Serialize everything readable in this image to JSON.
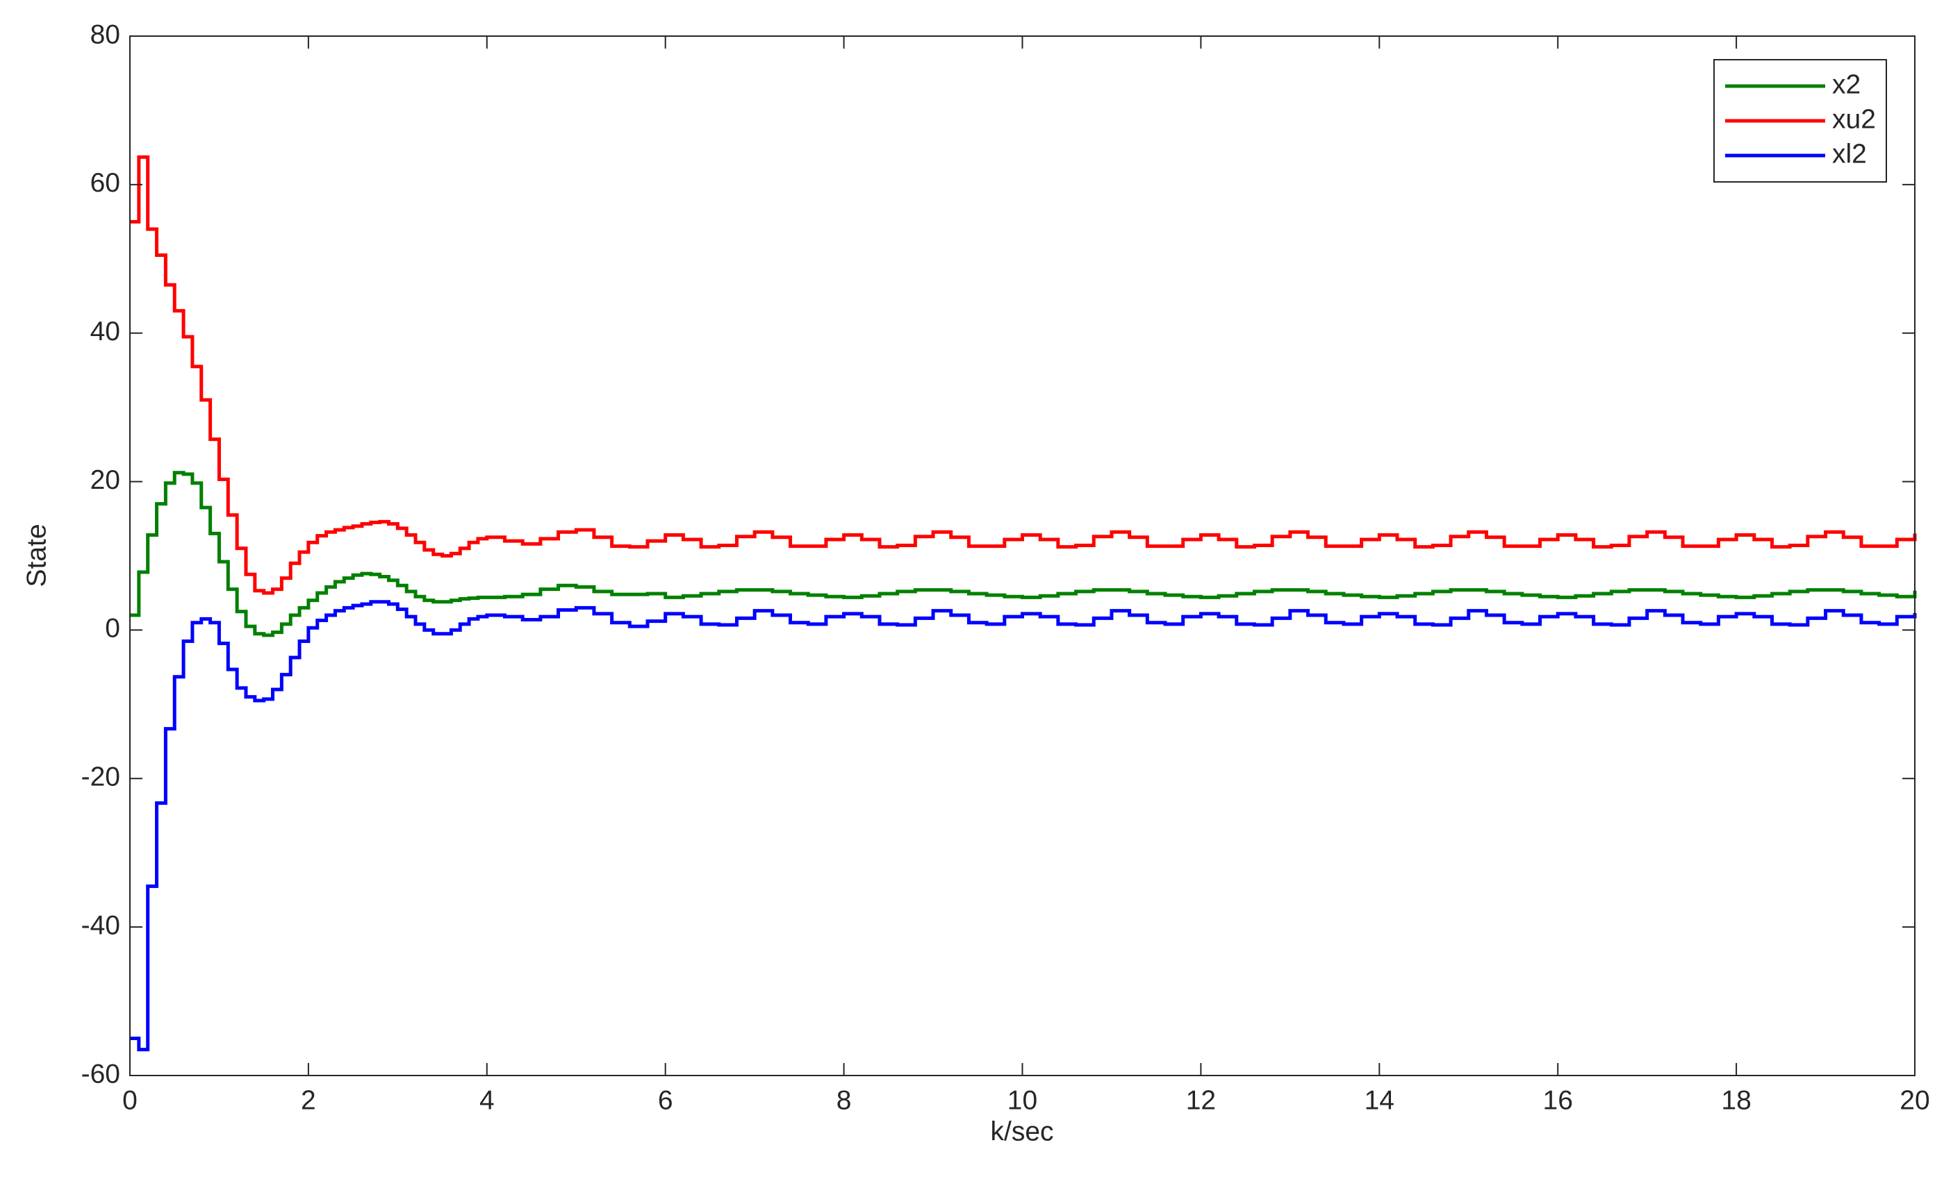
{
  "chart_data": {
    "type": "stairs",
    "xlabel": "k/sec",
    "ylabel": "State",
    "xlim": [
      0,
      20
    ],
    "ylim": [
      -60,
      80
    ],
    "xticks": [
      0,
      2,
      4,
      6,
      8,
      10,
      12,
      14,
      16,
      18,
      20
    ],
    "yticks": [
      -60,
      -40,
      -20,
      0,
      20,
      40,
      60,
      80
    ],
    "grid": false,
    "legend": "northeast",
    "x": [
      0,
      0.1,
      0.2,
      0.3,
      0.4,
      0.5,
      0.6,
      0.7,
      0.8,
      0.9,
      1,
      1.1,
      1.2,
      1.3,
      1.4,
      1.5,
      1.6,
      1.7,
      1.8,
      1.9,
      2,
      2.1,
      2.2,
      2.3,
      2.4,
      2.5,
      2.6,
      2.7,
      2.8,
      2.9,
      3,
      3.1,
      3.2,
      3.3,
      3.4,
      3.5,
      3.6,
      3.7,
      3.8,
      3.9,
      4,
      4.2,
      4.4,
      4.6,
      4.8,
      5,
      5.2,
      5.4,
      5.6,
      5.8,
      6,
      6.2,
      6.4,
      6.6,
      6.8,
      7,
      7.2,
      7.4,
      7.6,
      7.8,
      8,
      8.2,
      8.4,
      8.6,
      8.8,
      9,
      9.2,
      9.4,
      9.6,
      9.8,
      10,
      10.2,
      10.4,
      10.6,
      10.8,
      11,
      11.2,
      11.4,
      11.6,
      11.8,
      12,
      12.2,
      12.4,
      12.6,
      12.8,
      13,
      13.2,
      13.4,
      13.6,
      13.8,
      14,
      14.2,
      14.4,
      14.6,
      14.8,
      15,
      15.2,
      15.4,
      15.6,
      15.8,
      16,
      16.2,
      16.4,
      16.6,
      16.8,
      17,
      17.2,
      17.4,
      17.6,
      17.8,
      18,
      18.2,
      18.4,
      18.6,
      18.8,
      19,
      19.2,
      19.4,
      19.6,
      19.8,
      20
    ],
    "series": [
      {
        "name": "x2",
        "color": "#008000",
        "values": [
          2,
          7.8,
          12.8,
          17,
          19.8,
          21.2,
          21,
          19.8,
          16.5,
          13,
          9.2,
          5.5,
          2.5,
          0.5,
          -0.5,
          -0.7,
          -0.3,
          0.8,
          2,
          3,
          4,
          5,
          5.8,
          6.5,
          7,
          7.4,
          7.6,
          7.5,
          7.2,
          6.7,
          6,
          5.2,
          4.5,
          4,
          3.8,
          3.8,
          4,
          4.2,
          4.3,
          4.4,
          4.4,
          4.5,
          4.8,
          5.5,
          6,
          5.8,
          5.2,
          4.8,
          4.8,
          4.9,
          4.4,
          4.6,
          4.9,
          5.2,
          5.4,
          5.4,
          5.2,
          4.9,
          4.7,
          4.5,
          4.4,
          4.6,
          4.9,
          5.2,
          5.4,
          5.4,
          5.2,
          4.9,
          4.7,
          4.5,
          4.4,
          4.6,
          4.9,
          5.2,
          5.4,
          5.4,
          5.2,
          4.9,
          4.7,
          4.5,
          4.4,
          4.6,
          4.9,
          5.2,
          5.4,
          5.4,
          5.2,
          4.9,
          4.7,
          4.5,
          4.4,
          4.6,
          4.9,
          5.2,
          5.4,
          5.4,
          5.2,
          4.9,
          4.7,
          4.5,
          4.4,
          4.6,
          4.9,
          5.2,
          5.4,
          5.4,
          5.2,
          4.9,
          4.7,
          4.5,
          4.4,
          4.6,
          4.9,
          5.2,
          5.4,
          5.4,
          5.2,
          4.9,
          4.7,
          4.5,
          5.3
        ]
      },
      {
        "name": "xu2",
        "color": "#ff0000",
        "values": [
          55,
          63.7,
          54,
          50.5,
          46.5,
          43,
          39.5,
          35.5,
          31,
          25.7,
          20.3,
          15.5,
          11,
          7.5,
          5.3,
          5,
          5.5,
          7,
          9,
          10.5,
          11.8,
          12.7,
          13.2,
          13.5,
          13.8,
          14,
          14.3,
          14.5,
          14.6,
          14.3,
          13.7,
          12.8,
          11.8,
          10.8,
          10.2,
          10,
          10.3,
          11,
          11.8,
          12.3,
          12.5,
          12,
          11.6,
          12.3,
          13.2,
          13.5,
          12.5,
          11.3,
          11.2,
          12,
          12.8,
          12.2,
          11.2,
          11.4,
          12.6,
          13.2,
          12.5,
          11.3,
          11.3,
          12.2,
          12.8,
          12.2,
          11.2,
          11.4,
          12.6,
          13.2,
          12.5,
          11.3,
          11.3,
          12.2,
          12.8,
          12.2,
          11.2,
          11.4,
          12.6,
          13.2,
          12.5,
          11.3,
          11.3,
          12.2,
          12.8,
          12.2,
          11.2,
          11.4,
          12.6,
          13.2,
          12.5,
          11.3,
          11.3,
          12.2,
          12.8,
          12.2,
          11.2,
          11.4,
          12.6,
          13.2,
          12.5,
          11.3,
          11.3,
          12.2,
          12.8,
          12.2,
          11.2,
          11.4,
          12.6,
          13.2,
          12.5,
          11.3,
          11.3,
          12.2,
          12.8,
          12.2,
          11.2,
          11.4,
          12.6,
          13.2,
          12.5,
          11.3,
          11.3,
          12.2,
          13
        ]
      },
      {
        "name": "xl2",
        "color": "#0000ff",
        "values": [
          -55,
          -56.5,
          -34.5,
          -23.3,
          -13.3,
          -6.3,
          -1.5,
          1,
          1.5,
          1,
          -1.8,
          -5.3,
          -7.8,
          -9,
          -9.5,
          -9.3,
          -8,
          -6,
          -3.7,
          -1.5,
          0.3,
          1.3,
          2,
          2.6,
          3,
          3.3,
          3.5,
          3.8,
          3.8,
          3.5,
          2.8,
          1.8,
          0.8,
          0,
          -0.5,
          -0.5,
          0,
          0.8,
          1.5,
          1.8,
          2,
          1.8,
          1.4,
          1.8,
          2.7,
          3,
          2.2,
          1,
          0.5,
          1.2,
          2.2,
          1.8,
          0.8,
          0.7,
          1.6,
          2.6,
          2,
          1,
          0.8,
          1.8,
          2.2,
          1.8,
          0.8,
          0.7,
          1.6,
          2.6,
          2,
          1,
          0.8,
          1.8,
          2.2,
          1.8,
          0.8,
          0.7,
          1.6,
          2.6,
          2,
          1,
          0.8,
          1.8,
          2.2,
          1.8,
          0.8,
          0.7,
          1.6,
          2.6,
          2,
          1,
          0.8,
          1.8,
          2.2,
          1.8,
          0.8,
          0.7,
          1.6,
          2.6,
          2,
          1,
          0.8,
          1.8,
          2.2,
          1.8,
          0.8,
          0.7,
          1.6,
          2.6,
          2,
          1,
          0.8,
          1.8,
          2.2,
          1.8,
          0.8,
          0.7,
          1.6,
          2.6,
          2,
          1,
          0.8,
          1.8,
          2.3
        ]
      }
    ]
  }
}
